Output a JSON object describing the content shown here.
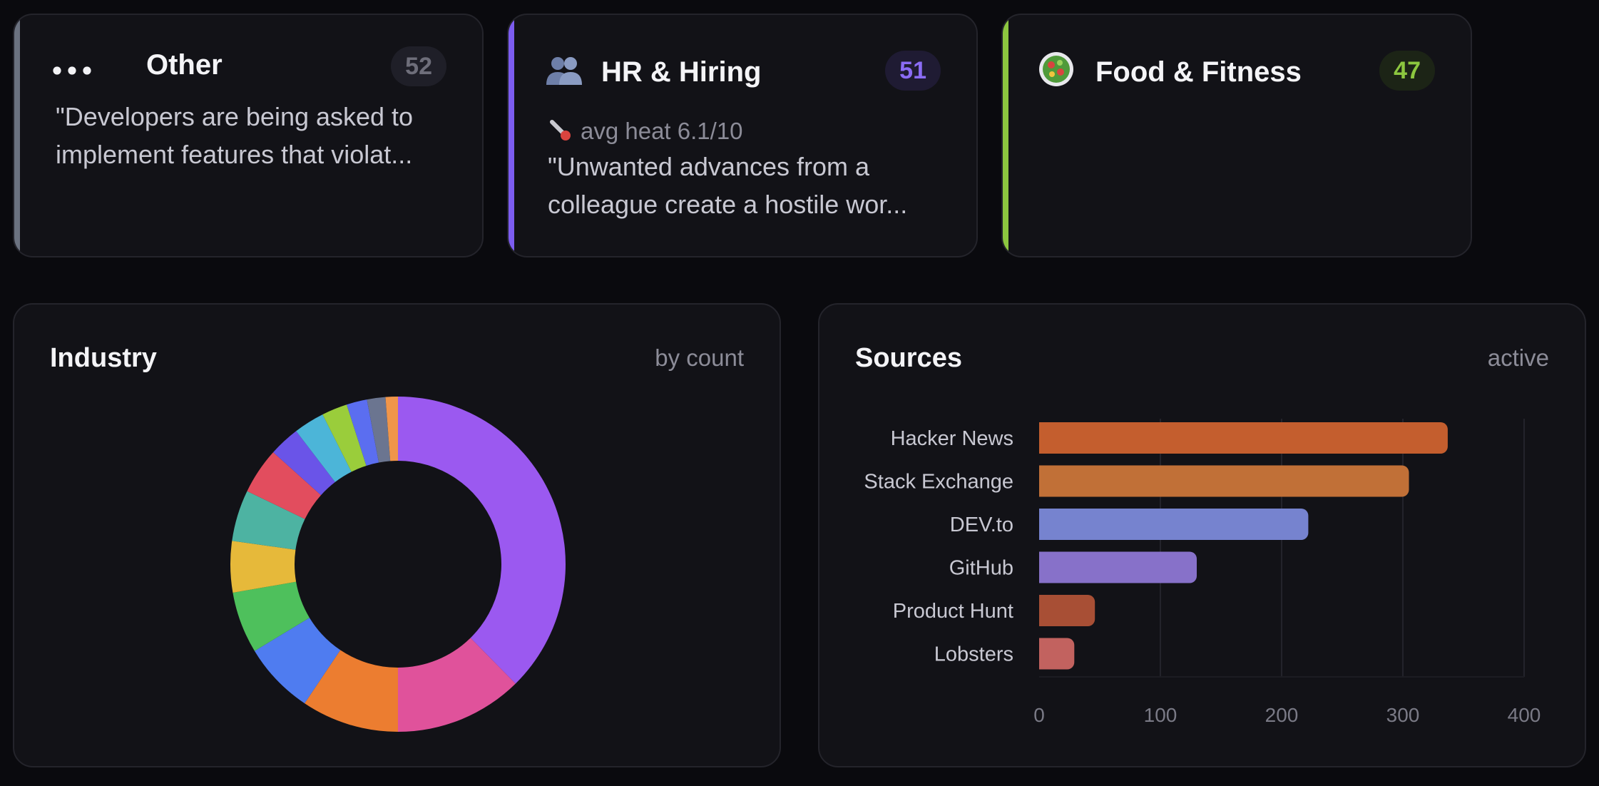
{
  "categories": [
    {
      "icon": "ellipsis-icon",
      "title": "Other",
      "count": "52",
      "accent": "#6b7280",
      "badge_color": "#6e6e7a",
      "badge_bg": "#1f1f28",
      "quote": "\"Developers are being asked to implement features that violat..."
    },
    {
      "icon": "people-icon",
      "title": "HR & Hiring",
      "count": "51",
      "accent": "#7c5cf0",
      "badge_color": "#8b6cf5",
      "badge_bg": "#1f1b33",
      "heat": "avg heat 6.1/10",
      "quote": "\"Unwanted advances from a colleague create a hostile wor..."
    },
    {
      "icon": "salad-icon",
      "title": "Food & Fitness",
      "count": "47",
      "accent": "#8cc63f",
      "badge_color": "#8cc63f",
      "badge_bg": "#1c2416"
    }
  ],
  "industry": {
    "title": "Industry",
    "subtitle": "by count"
  },
  "sources": {
    "title": "Sources",
    "subtitle": "active"
  },
  "chart_data": [
    {
      "type": "pie",
      "title": "Industry",
      "subtitle": "by count",
      "donut": true,
      "slices": [
        {
          "value": 38,
          "color": "#9b59f0"
        },
        {
          "value": 12.5,
          "color": "#e0529b"
        },
        {
          "value": 9.5,
          "color": "#ec7d30"
        },
        {
          "value": 7,
          "color": "#4f7cf0"
        },
        {
          "value": 6,
          "color": "#4ec05c"
        },
        {
          "value": 5,
          "color": "#e6b93a"
        },
        {
          "value": 5,
          "color": "#4db3a2"
        },
        {
          "value": 4.5,
          "color": "#e24d5e"
        },
        {
          "value": 3,
          "color": "#6a54e8"
        },
        {
          "value": 3,
          "color": "#4cb5d8"
        },
        {
          "value": 2.5,
          "color": "#9acd3b"
        },
        {
          "value": 2,
          "color": "#5b6ef0"
        },
        {
          "value": 1.8,
          "color": "#6b7590"
        },
        {
          "value": 1.2,
          "color": "#f0954a"
        }
      ]
    },
    {
      "type": "bar",
      "orientation": "horizontal",
      "title": "Sources",
      "subtitle": "active",
      "categories": [
        "Hacker News",
        "Stack Exchange",
        "DEV.to",
        "GitHub",
        "Product Hunt",
        "Lobsters"
      ],
      "values": [
        337,
        305,
        222,
        130,
        46,
        29
      ],
      "colors": [
        "#c45e2e",
        "#c17037",
        "#7683cf",
        "#8771c9",
        "#a84f35",
        "#c2625f"
      ],
      "xlim": [
        0,
        400
      ],
      "xticks": [
        "0",
        "100",
        "200",
        "300",
        "400"
      ],
      "grid": true
    }
  ]
}
